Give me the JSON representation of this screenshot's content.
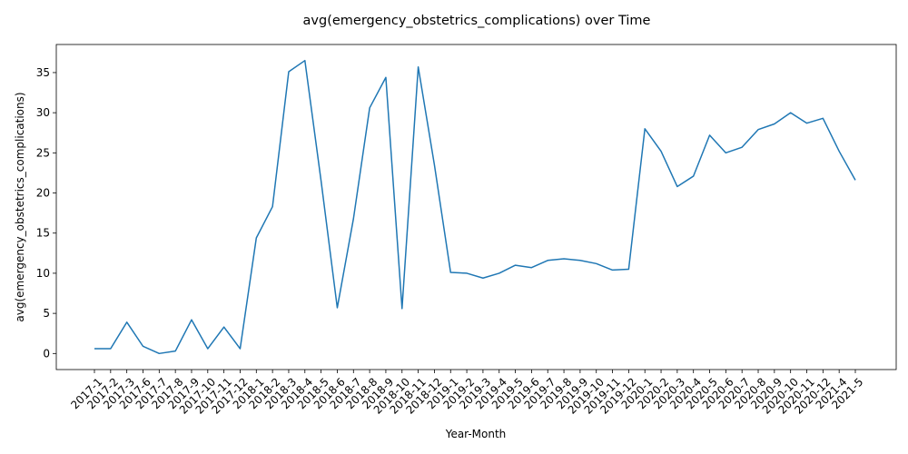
{
  "chart_data": {
    "type": "line",
    "title": "avg(emergency_obstetrics_complications) over Time",
    "xlabel": "Year-Month",
    "ylabel": "avg(emergency_obstetrics_complications)",
    "ylim": [
      -2,
      38.5
    ],
    "yticks": [
      0,
      5,
      10,
      15,
      20,
      25,
      30,
      35
    ],
    "grid": false,
    "line_color": "#1f77b4",
    "categories": [
      "2017-1",
      "2017-2",
      "2017-3",
      "2017-6",
      "2017-7",
      "2017-8",
      "2017-9",
      "2017-10",
      "2017-11",
      "2017-12",
      "2018-1",
      "2018-2",
      "2018-3",
      "2018-4",
      "2018-5",
      "2018-6",
      "2018-7",
      "2018-8",
      "2018-9",
      "2018-10",
      "2018-11",
      "2018-12",
      "2019-1",
      "2019-2",
      "2019-3",
      "2019-4",
      "2019-5",
      "2019-6",
      "2019-7",
      "2019-8",
      "2019-9",
      "2019-10",
      "2019-11",
      "2019-12",
      "2020-1",
      "2020-2",
      "2020-3",
      "2020-4",
      "2020-5",
      "2020-6",
      "2020-7",
      "2020-8",
      "2020-9",
      "2020-10",
      "2020-11",
      "2020-12",
      "2021-4",
      "2021-5"
    ],
    "series": [
      {
        "values": [
          0.6,
          0.6,
          3.9,
          0.9,
          0.0,
          0.3,
          4.2,
          0.6,
          3.3,
          0.6,
          14.4,
          18.3,
          35.1,
          36.5,
          21.5,
          5.7,
          16.8,
          30.6,
          34.4,
          5.6,
          35.7,
          23.5,
          10.1,
          10.0,
          9.4,
          10.0,
          11.0,
          10.7,
          11.6,
          11.8,
          11.6,
          11.2,
          10.4,
          10.5,
          28.0,
          25.2,
          20.8,
          22.1,
          27.2,
          25.0,
          25.7,
          27.9,
          28.6,
          30.0,
          28.7,
          29.3,
          25.2,
          21.6
        ]
      }
    ]
  }
}
